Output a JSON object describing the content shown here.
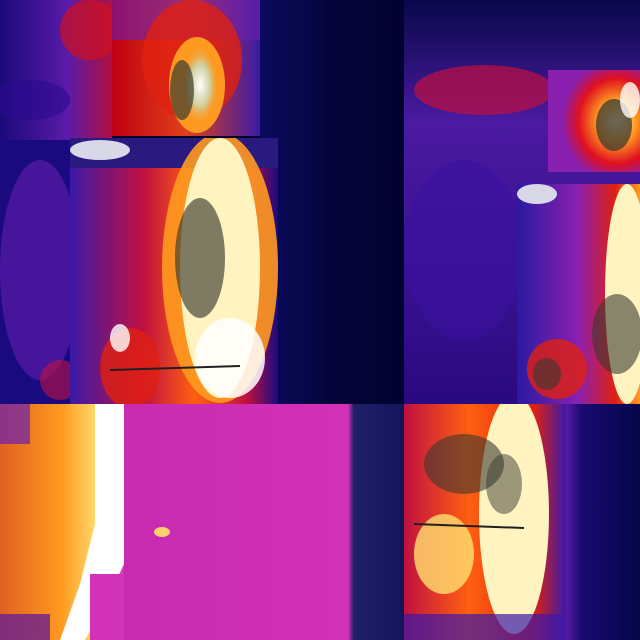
{
  "image": {
    "kind": "thermal-camera-collage",
    "palette": "ironbow",
    "colors": {
      "background": "#02022a",
      "cold": "#0a0a55",
      "cool": "#3a1aa8",
      "mid": "#7a24c0",
      "warm": "#b0005a",
      "hot": "#e01010",
      "hotter": "#ff7a00",
      "hottest": "#fff4c0",
      "saturated_white": "#ffffff",
      "magenta_field": "#d232b8"
    },
    "tiles": [
      {
        "id": "top-left-strip",
        "content": "cool-background"
      },
      {
        "id": "top-flame-small",
        "content": "fire-plume"
      },
      {
        "id": "dark-column",
        "content": "cold-background"
      },
      {
        "id": "top-right-field",
        "content": "cool-background"
      },
      {
        "id": "right-flame-small",
        "content": "fire-plume"
      },
      {
        "id": "center-flame-large",
        "content": "fire-plume"
      },
      {
        "id": "right-flame-tall",
        "content": "fire-plume"
      },
      {
        "id": "bottom-left-flame",
        "content": "fire-plume-saturated"
      },
      {
        "id": "magenta-wall",
        "content": "uniform-warm-surface"
      },
      {
        "id": "bottom-right-flame",
        "content": "fire-plume"
      },
      {
        "id": "bottom-right-dark",
        "content": "cold-background"
      }
    ]
  }
}
